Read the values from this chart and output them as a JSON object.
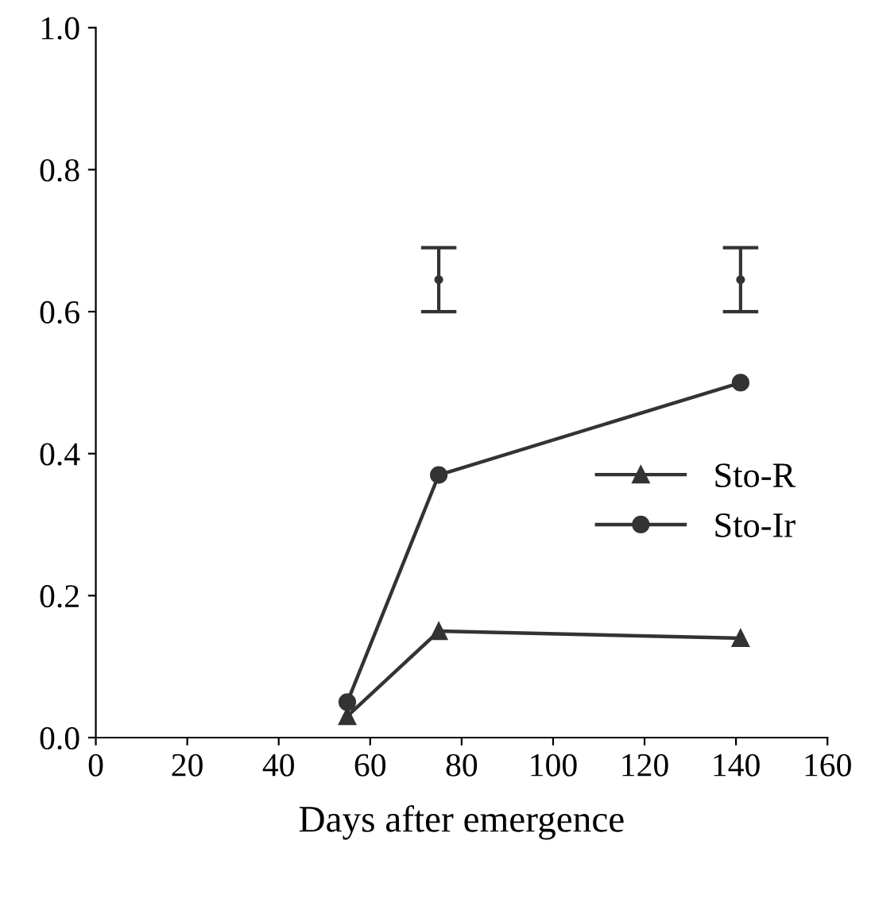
{
  "chart_data": {
    "type": "line",
    "xlabel": "Days after emergence",
    "series": [
      {
        "name": "Sto-R",
        "color": "#333333",
        "marker": "triangle",
        "x": [
          55,
          75,
          141
        ],
        "values": [
          0.03,
          0.15,
          0.14
        ]
      },
      {
        "name": "Sto-Ir",
        "color": "#333333",
        "marker": "circle",
        "x": [
          55,
          75,
          141
        ],
        "values": [
          0.05,
          0.37,
          0.5
        ]
      },
      {
        "type": "scatter",
        "color": "#333333",
        "x": [
          75,
          141
        ],
        "values": [
          0.645,
          0.645
        ],
        "errors": [
          0.045,
          0.045
        ]
      }
    ],
    "xlim": [
      0,
      160
    ],
    "xticks": [
      0,
      20,
      40,
      60,
      80,
      100,
      120,
      140,
      160
    ],
    "ylim": [
      0,
      1.0
    ],
    "yticks": [
      {
        "value": 0,
        "label": "0.0"
      },
      {
        "value": 0.2,
        "label": "0.2"
      },
      {
        "value": 0.4,
        "label": "0.4"
      },
      {
        "value": 0.6,
        "label": "0.6"
      },
      {
        "value": 0.8,
        "label": "0.8"
      },
      {
        "value": 1.0,
        "label": "1.0"
      }
    ],
    "grid": false,
    "legend": "center right"
  }
}
